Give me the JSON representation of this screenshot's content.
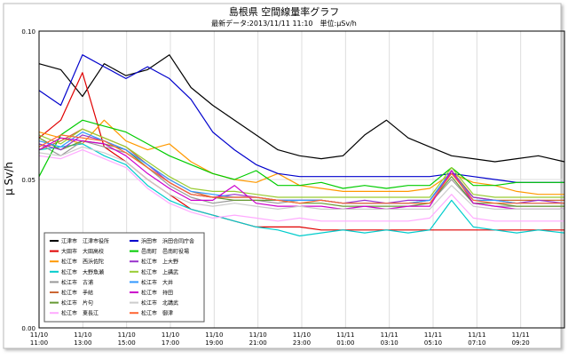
{
  "chart_data": {
    "type": "line",
    "title": "島根県 空間線量率グラフ",
    "subtitle": "最新データ:2013/11/11 11:10　単位:μSv/h",
    "ylabel": "μ Sv/h",
    "xlabel": "",
    "ylim": [
      0,
      0.1
    ],
    "yticks": [
      "0.00",
      "0.05",
      "0.10"
    ],
    "xticks": [
      [
        "11/10",
        "11:00"
      ],
      [
        "11/10",
        "13:00"
      ],
      [
        "11/10",
        "15:00"
      ],
      [
        "11/10",
        "17:00"
      ],
      [
        "11/10",
        "19:00"
      ],
      [
        "11/10",
        "21:00"
      ],
      [
        "11/10",
        "23:00"
      ],
      [
        "11/11",
        "01:00"
      ],
      [
        "11/11",
        "03:10"
      ],
      [
        "11/11",
        "05:10"
      ],
      [
        "11/11",
        "07:10"
      ],
      [
        "11/11",
        "09:20"
      ]
    ],
    "xlim": [
      0,
      24.2
    ],
    "grid": true,
    "legend_position": "bottom-left",
    "series": [
      {
        "name": "江津市　江津市役所",
        "color": "#000000",
        "x": [
          0,
          1,
          2,
          3,
          4,
          5,
          6,
          7,
          8,
          9,
          10,
          11,
          12,
          13,
          14,
          15,
          16,
          17,
          18,
          19,
          20,
          21,
          22,
          23,
          24.2
        ],
        "y": [
          0.089,
          0.087,
          0.078,
          0.089,
          0.085,
          0.087,
          0.092,
          0.081,
          0.075,
          0.07,
          0.065,
          0.06,
          0.058,
          0.057,
          0.058,
          0.065,
          0.07,
          0.064,
          0.061,
          0.058,
          0.057,
          0.056,
          0.057,
          0.058,
          0.056
        ]
      },
      {
        "name": "大田市　大田高校",
        "color": "#e00000",
        "x": [
          0,
          1,
          2,
          3,
          4,
          5,
          6,
          7,
          8,
          9,
          10,
          11,
          12,
          13,
          14,
          15,
          16,
          17,
          18,
          19,
          20,
          21,
          22,
          23,
          24.2
        ],
        "y": [
          0.064,
          0.07,
          0.086,
          0.061,
          0.056,
          0.05,
          0.045,
          0.04,
          0.038,
          0.036,
          0.034,
          0.034,
          0.034,
          0.033,
          0.033,
          0.033,
          0.033,
          0.033,
          0.033,
          0.033,
          0.033,
          0.033,
          0.033,
          0.033,
          0.033
        ]
      },
      {
        "name": "松江市　西浜佐陀",
        "color": "#ff9900",
        "x": [
          0,
          1,
          2,
          3,
          4,
          5,
          6,
          7,
          8,
          9,
          10,
          11,
          12,
          13,
          14,
          15,
          16,
          17,
          18,
          19,
          20,
          21,
          22,
          23,
          24.2
        ],
        "y": [
          0.066,
          0.064,
          0.062,
          0.07,
          0.063,
          0.06,
          0.062,
          0.056,
          0.052,
          0.05,
          0.049,
          0.052,
          0.048,
          0.047,
          0.046,
          0.046,
          0.046,
          0.046,
          0.047,
          0.052,
          0.049,
          0.048,
          0.046,
          0.045,
          0.045
        ]
      },
      {
        "name": "松江市　大野魚瀬",
        "color": "#00cccc",
        "x": [
          0,
          1,
          2,
          3,
          4,
          5,
          6,
          7,
          8,
          9,
          10,
          11,
          12,
          13,
          14,
          15,
          16,
          17,
          18,
          19,
          20,
          21,
          22,
          23,
          24.2
        ],
        "y": [
          0.06,
          0.061,
          0.062,
          0.058,
          0.055,
          0.048,
          0.043,
          0.04,
          0.038,
          0.036,
          0.034,
          0.033,
          0.031,
          0.032,
          0.033,
          0.032,
          0.033,
          0.032,
          0.033,
          0.043,
          0.034,
          0.033,
          0.032,
          0.033,
          0.032
        ]
      },
      {
        "name": "松江市　古浦",
        "color": "#999999",
        "x": [
          0,
          1,
          2,
          3,
          4,
          5,
          6,
          7,
          8,
          9,
          10,
          11,
          12,
          13,
          14,
          15,
          16,
          17,
          18,
          19,
          20,
          21,
          22,
          23,
          24.2
        ],
        "y": [
          0.062,
          0.058,
          0.063,
          0.061,
          0.059,
          0.054,
          0.048,
          0.044,
          0.042,
          0.043,
          0.043,
          0.042,
          0.043,
          0.043,
          0.042,
          0.042,
          0.042,
          0.042,
          0.042,
          0.05,
          0.042,
          0.041,
          0.041,
          0.041,
          0.041
        ]
      },
      {
        "name": "松江市　手結",
        "color": "#cc6633",
        "x": [
          0,
          1,
          2,
          3,
          4,
          5,
          6,
          7,
          8,
          9,
          10,
          11,
          12,
          13,
          14,
          15,
          16,
          17,
          18,
          19,
          20,
          21,
          22,
          23,
          24.2
        ],
        "y": [
          0.06,
          0.063,
          0.067,
          0.064,
          0.061,
          0.055,
          0.05,
          0.046,
          0.044,
          0.044,
          0.044,
          0.043,
          0.043,
          0.043,
          0.042,
          0.042,
          0.042,
          0.042,
          0.043,
          0.053,
          0.044,
          0.043,
          0.043,
          0.043,
          0.043
        ]
      },
      {
        "name": "松江市　片句",
        "color": "#669933",
        "x": [
          0,
          1,
          2,
          3,
          4,
          5,
          6,
          7,
          8,
          9,
          10,
          11,
          12,
          13,
          14,
          15,
          16,
          17,
          18,
          19,
          20,
          21,
          22,
          23,
          24.2
        ],
        "y": [
          0.064,
          0.06,
          0.063,
          0.062,
          0.06,
          0.054,
          0.049,
          0.045,
          0.044,
          0.043,
          0.043,
          0.043,
          0.042,
          0.042,
          0.041,
          0.041,
          0.041,
          0.041,
          0.042,
          0.051,
          0.042,
          0.042,
          0.041,
          0.041,
          0.041
        ]
      },
      {
        "name": "松江市　東長江",
        "color": "#ffaaff",
        "x": [
          0,
          1,
          2,
          3,
          4,
          5,
          6,
          7,
          8,
          9,
          10,
          11,
          12,
          13,
          14,
          15,
          16,
          17,
          18,
          19,
          20,
          21,
          22,
          23,
          24.2
        ],
        "y": [
          0.058,
          0.057,
          0.06,
          0.057,
          0.054,
          0.047,
          0.042,
          0.039,
          0.037,
          0.038,
          0.037,
          0.036,
          0.037,
          0.036,
          0.036,
          0.036,
          0.036,
          0.036,
          0.037,
          0.045,
          0.037,
          0.036,
          0.036,
          0.036,
          0.036
        ]
      },
      {
        "name": "浜田市　浜田合同庁舎",
        "color": "#0000cc",
        "x": [
          0,
          1,
          2,
          3,
          4,
          5,
          6,
          7,
          8,
          9,
          10,
          11,
          12,
          13,
          14,
          15,
          16,
          17,
          18,
          19,
          20,
          21,
          22,
          23,
          24.2
        ],
        "y": [
          0.08,
          0.075,
          0.092,
          0.088,
          0.084,
          0.088,
          0.084,
          0.077,
          0.066,
          0.06,
          0.055,
          0.052,
          0.051,
          0.051,
          0.051,
          0.051,
          0.051,
          0.051,
          0.051,
          0.052,
          0.051,
          0.05,
          0.049,
          0.049,
          0.049
        ]
      },
      {
        "name": "邑南町　邑南町役場",
        "color": "#00cc00",
        "x": [
          0,
          1,
          2,
          3,
          4,
          5,
          6,
          7,
          8,
          9,
          10,
          11,
          12,
          13,
          14,
          15,
          16,
          17,
          18,
          19,
          20,
          21,
          22,
          23,
          24.2
        ],
        "y": [
          0.051,
          0.065,
          0.07,
          0.068,
          0.066,
          0.062,
          0.058,
          0.055,
          0.052,
          0.05,
          0.053,
          0.048,
          0.048,
          0.049,
          0.047,
          0.048,
          0.047,
          0.048,
          0.048,
          0.054,
          0.048,
          0.048,
          0.049,
          0.049,
          0.049
        ]
      },
      {
        "name": "松江市　上大野",
        "color": "#9933cc",
        "x": [
          0,
          1,
          2,
          3,
          4,
          5,
          6,
          7,
          8,
          9,
          10,
          11,
          12,
          13,
          14,
          15,
          16,
          17,
          18,
          19,
          20,
          21,
          22,
          23,
          24.2
        ],
        "y": [
          0.062,
          0.06,
          0.065,
          0.063,
          0.06,
          0.055,
          0.049,
          0.045,
          0.044,
          0.045,
          0.044,
          0.043,
          0.043,
          0.043,
          0.042,
          0.043,
          0.042,
          0.043,
          0.043,
          0.052,
          0.044,
          0.043,
          0.042,
          0.043,
          0.042
        ]
      },
      {
        "name": "松江市　上講武",
        "color": "#99cc33",
        "x": [
          0,
          1,
          2,
          3,
          4,
          5,
          6,
          7,
          8,
          9,
          10,
          11,
          12,
          13,
          14,
          15,
          16,
          17,
          18,
          19,
          20,
          21,
          22,
          23,
          24.2
        ],
        "y": [
          0.065,
          0.062,
          0.067,
          0.064,
          0.061,
          0.056,
          0.051,
          0.047,
          0.046,
          0.046,
          0.045,
          0.044,
          0.044,
          0.044,
          0.044,
          0.044,
          0.044,
          0.044,
          0.044,
          0.054,
          0.045,
          0.044,
          0.044,
          0.044,
          0.044
        ]
      },
      {
        "name": "松江市　大井",
        "color": "#3399ff",
        "x": [
          0,
          1,
          2,
          3,
          4,
          5,
          6,
          7,
          8,
          9,
          10,
          11,
          12,
          13,
          14,
          15,
          16,
          17,
          18,
          19,
          20,
          21,
          22,
          23,
          24.2
        ],
        "y": [
          0.063,
          0.061,
          0.066,
          0.063,
          0.06,
          0.055,
          0.05,
          0.046,
          0.045,
          0.044,
          0.044,
          0.043,
          0.043,
          0.043,
          0.042,
          0.042,
          0.042,
          0.042,
          0.043,
          0.053,
          0.043,
          0.043,
          0.042,
          0.042,
          0.042
        ]
      },
      {
        "name": "松江市　持田",
        "color": "#cc00cc",
        "x": [
          0,
          1,
          2,
          3,
          4,
          5,
          6,
          7,
          8,
          9,
          10,
          11,
          12,
          13,
          14,
          15,
          16,
          17,
          18,
          19,
          20,
          21,
          22,
          23,
          24.2
        ],
        "y": [
          0.06,
          0.064,
          0.063,
          0.062,
          0.058,
          0.052,
          0.047,
          0.043,
          0.043,
          0.048,
          0.042,
          0.041,
          0.041,
          0.041,
          0.04,
          0.041,
          0.04,
          0.041,
          0.041,
          0.053,
          0.042,
          0.041,
          0.04,
          0.04,
          0.04
        ]
      },
      {
        "name": "松江市　北講武",
        "color": "#cccccc",
        "x": [
          0,
          1,
          2,
          3,
          4,
          5,
          6,
          7,
          8,
          9,
          10,
          11,
          12,
          13,
          14,
          15,
          16,
          17,
          18,
          19,
          20,
          21,
          22,
          23,
          24.2
        ],
        "y": [
          0.059,
          0.058,
          0.061,
          0.059,
          0.056,
          0.05,
          0.045,
          0.042,
          0.041,
          0.042,
          0.041,
          0.04,
          0.041,
          0.04,
          0.04,
          0.04,
          0.04,
          0.04,
          0.04,
          0.048,
          0.041,
          0.04,
          0.04,
          0.04,
          0.04
        ]
      },
      {
        "name": "松江市　御津",
        "color": "#ff6633",
        "x": [
          0,
          1,
          2,
          3,
          4,
          5,
          6,
          7,
          8,
          9,
          10,
          11,
          12,
          13,
          14,
          15,
          16,
          17,
          18,
          19,
          20,
          21,
          22,
          23,
          24.2
        ],
        "y": [
          0.061,
          0.065,
          0.064,
          0.063,
          0.059,
          0.054,
          0.049,
          0.045,
          0.044,
          0.044,
          0.044,
          0.043,
          0.042,
          0.043,
          0.042,
          0.042,
          0.042,
          0.042,
          0.042,
          0.052,
          0.043,
          0.042,
          0.042,
          0.042,
          0.042
        ]
      }
    ]
  }
}
